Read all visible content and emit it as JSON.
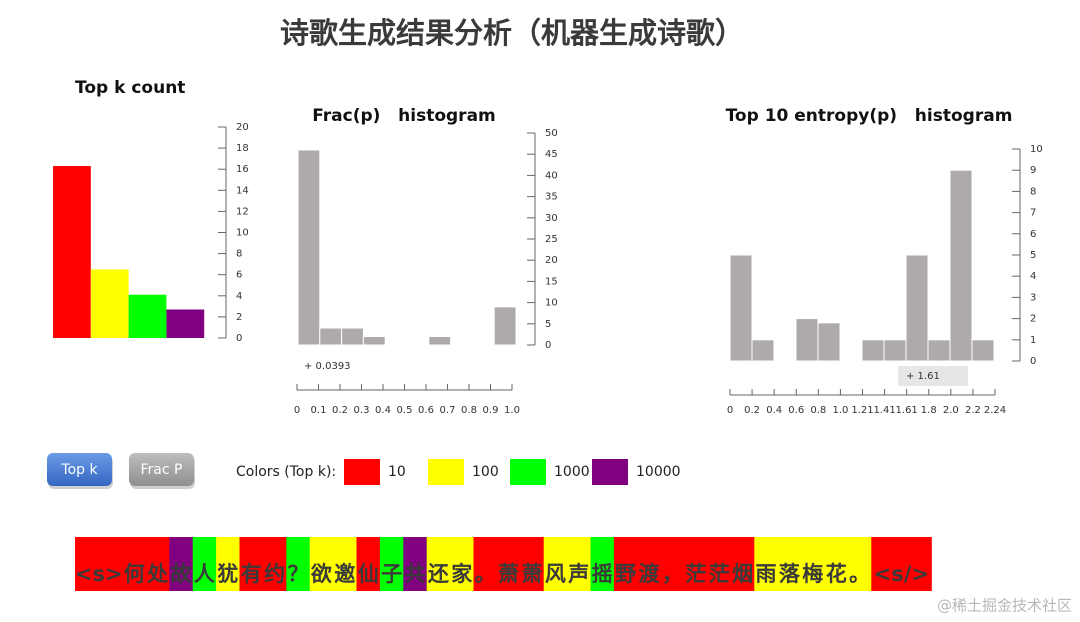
{
  "title": "诗歌生成结果分析（机器生成诗歌）",
  "chart_data": [
    {
      "type": "bar",
      "title": "Top k count",
      "values": [
        16.3,
        6.5,
        4.1,
        2.7
      ],
      "colors": [
        "#ff0000",
        "#ffff00",
        "#00ff00",
        "#800080"
      ],
      "ylim": [
        0,
        20
      ],
      "yticks": [
        0,
        2,
        4,
        6,
        8,
        10,
        12,
        14,
        16,
        18,
        20
      ]
    },
    {
      "type": "histogram",
      "title": "Frac(p)   histogram",
      "bins": [
        0,
        0.1,
        0.2,
        0.3,
        0.4,
        0.5,
        0.6,
        0.7,
        0.8,
        0.9,
        1
      ],
      "values": [
        46,
        4,
        4,
        2,
        0,
        0,
        2,
        0,
        0,
        9
      ],
      "color": "#aeaaaa",
      "xlim": [
        0,
        1
      ],
      "xticks": [
        0,
        0.1,
        0.2,
        0.3,
        0.4,
        0.5,
        0.6,
        0.7,
        0.8,
        0.9,
        {
          "value": 1,
          "label": "1.0"
        }
      ],
      "ylim": [
        0,
        50
      ],
      "yticks": [
        0,
        5,
        10,
        15,
        20,
        25,
        30,
        35,
        40,
        45,
        50
      ],
      "annotation": "+ 0.0393"
    },
    {
      "type": "histogram",
      "title": "Top 10 entropy(p)   histogram",
      "bins": [
        0,
        0.2,
        0.4,
        0.6,
        0.8,
        1,
        1.21,
        1.41,
        1.61,
        1.8,
        2,
        2.2,
        2.24
      ],
      "values": [
        5,
        1,
        0,
        2,
        1.8,
        0,
        1,
        1,
        5,
        1,
        9,
        1
      ],
      "color": "#aeaaaa",
      "xscale": "ordinal",
      "xticks": [
        0,
        0.2,
        0.4,
        0.6,
        0.8,
        {
          "value": 1,
          "label": "1.0"
        },
        1.21,
        1.41,
        1.61,
        1.8,
        {
          "value": 2,
          "label": "2.0"
        },
        2.2,
        2.24
      ],
      "ylim": [
        0,
        10
      ],
      "yticks": [
        0,
        1,
        2,
        3,
        4,
        5,
        6,
        7,
        8,
        9,
        10
      ],
      "annotation": "+ 1.61"
    }
  ],
  "buttons": [
    "Top k",
    "Frac P"
  ],
  "legend": {
    "title": "Colors (Top k):",
    "items": [
      {
        "label": 10,
        "color": "#ff0000"
      },
      {
        "label": 100,
        "color": "#ffff00"
      },
      {
        "label": 1000,
        "color": "#00ff00"
      },
      {
        "label": 10000,
        "color": "#800080"
      }
    ]
  },
  "tokens": [
    {
      "text": "<s>",
      "rank": 10
    },
    {
      "text": "何",
      "rank": 10
    },
    {
      "text": "处",
      "rank": 10
    },
    {
      "text": "故",
      "rank": 10000
    },
    {
      "text": "人",
      "rank": 1000
    },
    {
      "text": "犹",
      "rank": 100
    },
    {
      "text": "有",
      "rank": 10
    },
    {
      "text": "约",
      "rank": 10
    },
    {
      "text": "？",
      "rank": 1000
    },
    {
      "text": "欲",
      "rank": 100
    },
    {
      "text": "邀",
      "rank": 100
    },
    {
      "text": "仙",
      "rank": 10
    },
    {
      "text": "子",
      "rank": 1000
    },
    {
      "text": "共",
      "rank": 10000
    },
    {
      "text": "还",
      "rank": 100
    },
    {
      "text": "家",
      "rank": 100
    },
    {
      "text": "。",
      "rank": 10
    },
    {
      "text": "萧",
      "rank": 10
    },
    {
      "text": "萧",
      "rank": 10
    },
    {
      "text": "风",
      "rank": 100
    },
    {
      "text": "声",
      "rank": 100
    },
    {
      "text": "摇",
      "rank": 1000
    },
    {
      "text": "野",
      "rank": 10
    },
    {
      "text": "渡",
      "rank": 10
    },
    {
      "text": "，",
      "rank": 10
    },
    {
      "text": "茫",
      "rank": 10
    },
    {
      "text": "茫",
      "rank": 10
    },
    {
      "text": "烟",
      "rank": 10
    },
    {
      "text": "雨",
      "rank": 100
    },
    {
      "text": "落",
      "rank": 100
    },
    {
      "text": "梅",
      "rank": 100
    },
    {
      "text": "花",
      "rank": 100
    },
    {
      "text": "。",
      "rank": 100
    },
    {
      "text": "<s/>",
      "rank": 10
    }
  ],
  "watermark": "@稀土掘金技术社区"
}
